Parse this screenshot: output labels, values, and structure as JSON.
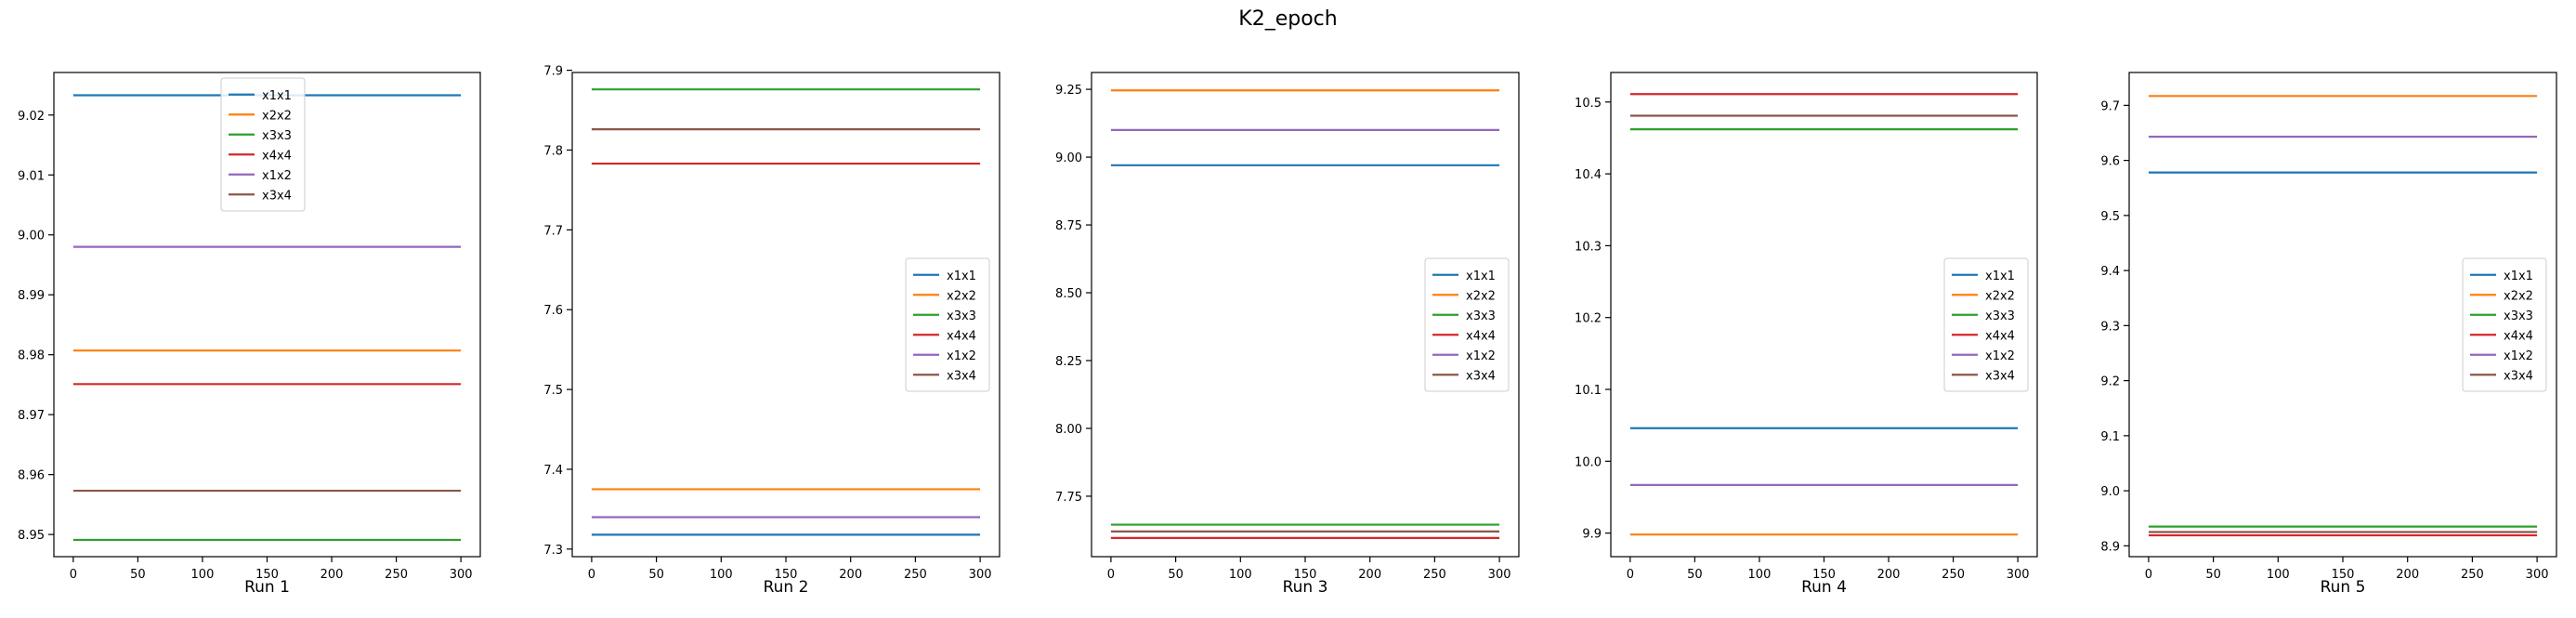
{
  "figure": {
    "suptitle": "K2_epoch"
  },
  "chart_data": [
    {
      "type": "line",
      "title": "",
      "xlabel": "Run 1",
      "ylabel": "",
      "x": [
        0,
        300
      ],
      "xlim": [
        -15,
        315
      ],
      "ylim": [
        8.9463,
        9.0271
      ],
      "xticks": [
        0,
        50,
        100,
        150,
        200,
        250,
        300
      ],
      "yticks": [
        8.95,
        8.96,
        8.97,
        8.98,
        8.99,
        9.0,
        9.01,
        9.02
      ],
      "ytick_labels": [
        "8.95",
        "8.96",
        "8.97",
        "8.98",
        "8.99",
        "9.00",
        "9.01",
        "9.02"
      ],
      "legend_loc": "upper center",
      "series": [
        {
          "name": "x1x1",
          "color": "#1f77b4",
          "values": [
            9.0233,
            9.0233
          ]
        },
        {
          "name": "x2x2",
          "color": "#ff7f0e",
          "values": [
            8.9807,
            8.9807
          ]
        },
        {
          "name": "x3x3",
          "color": "#2ca02c",
          "values": [
            8.9491,
            8.9491
          ]
        },
        {
          "name": "x4x4",
          "color": "#d62728",
          "values": [
            8.9751,
            8.9751
          ]
        },
        {
          "name": "x1x2",
          "color": "#9467bd",
          "values": [
            8.998,
            8.998
          ]
        },
        {
          "name": "x3x4",
          "color": "#8c564b",
          "values": [
            8.9573,
            8.9573
          ]
        }
      ]
    },
    {
      "type": "line",
      "title": "",
      "xlabel": "Run 2",
      "ylabel": "",
      "x": [
        0,
        300
      ],
      "xlim": [
        -15,
        315
      ],
      "ylim": [
        7.2905,
        7.8972
      ],
      "xticks": [
        0,
        50,
        100,
        150,
        200,
        250,
        300
      ],
      "yticks": [
        7.3,
        7.4,
        7.5,
        7.6,
        7.7,
        7.8,
        7.9
      ],
      "ytick_labels": [
        "7.3",
        "7.4",
        "7.5",
        "7.6",
        "7.7",
        "7.8",
        "7.9"
      ],
      "legend_loc": "center right",
      "series": [
        {
          "name": "x1x1",
          "color": "#1f77b4",
          "values": [
            7.318,
            7.318
          ]
        },
        {
          "name": "x2x2",
          "color": "#ff7f0e",
          "values": [
            7.375,
            7.375
          ]
        },
        {
          "name": "x3x3",
          "color": "#2ca02c",
          "values": [
            7.876,
            7.876
          ]
        },
        {
          "name": "x4x4",
          "color": "#d62728",
          "values": [
            7.783,
            7.783
          ]
        },
        {
          "name": "x1x2",
          "color": "#9467bd",
          "values": [
            7.34,
            7.34
          ]
        },
        {
          "name": "x3x4",
          "color": "#8c564b",
          "values": [
            7.826,
            7.826
          ]
        }
      ]
    },
    {
      "type": "line",
      "title": "",
      "xlabel": "Run 3",
      "ylabel": "",
      "x": [
        0,
        300
      ],
      "xlim": [
        -15,
        315
      ],
      "ylim": [
        7.5271,
        9.312
      ],
      "xticks": [
        0,
        50,
        100,
        150,
        200,
        250,
        300
      ],
      "yticks": [
        7.75,
        8.0,
        8.25,
        8.5,
        8.75,
        9.0,
        9.25
      ],
      "ytick_labels": [
        "7.75",
        "8.00",
        "8.25",
        "8.50",
        "8.75",
        "9.00",
        "9.25"
      ],
      "legend_loc": "center right",
      "series": [
        {
          "name": "x1x1",
          "color": "#1f77b4",
          "values": [
            8.97,
            8.97
          ]
        },
        {
          "name": "x2x2",
          "color": "#ff7f0e",
          "values": [
            9.246,
            9.246
          ]
        },
        {
          "name": "x3x3",
          "color": "#2ca02c",
          "values": [
            7.645,
            7.645
          ]
        },
        {
          "name": "x4x4",
          "color": "#d62728",
          "values": [
            7.596,
            7.596
          ]
        },
        {
          "name": "x1x2",
          "color": "#9467bd",
          "values": [
            9.1,
            9.1
          ]
        },
        {
          "name": "x3x4",
          "color": "#8c564b",
          "values": [
            7.62,
            7.62
          ]
        }
      ]
    },
    {
      "type": "line",
      "title": "",
      "xlabel": "Run 4",
      "ylabel": "",
      "x": [
        0,
        300
      ],
      "xlim": [
        -15,
        315
      ],
      "ylim": [
        9.8672,
        10.5411
      ],
      "xticks": [
        0,
        50,
        100,
        150,
        200,
        250,
        300
      ],
      "yticks": [
        9.9,
        10.0,
        10.1,
        10.2,
        10.3,
        10.4,
        10.5
      ],
      "ytick_labels": [
        "9.9",
        "10.0",
        "10.1",
        "10.2",
        "10.3",
        "10.4",
        "10.5"
      ],
      "legend_loc": "center right",
      "series": [
        {
          "name": "x1x1",
          "color": "#1f77b4",
          "values": [
            10.046,
            10.046
          ]
        },
        {
          "name": "x2x2",
          "color": "#ff7f0e",
          "values": [
            9.898,
            9.898
          ]
        },
        {
          "name": "x3x3",
          "color": "#2ca02c",
          "values": [
            10.462,
            10.462
          ]
        },
        {
          "name": "x4x4",
          "color": "#d62728",
          "values": [
            10.511,
            10.511
          ]
        },
        {
          "name": "x1x2",
          "color": "#9467bd",
          "values": [
            9.967,
            9.967
          ]
        },
        {
          "name": "x3x4",
          "color": "#8c564b",
          "values": [
            10.481,
            10.481
          ]
        }
      ]
    },
    {
      "type": "line",
      "title": "",
      "xlabel": "Run 5",
      "ylabel": "",
      "x": [
        0,
        300
      ],
      "xlim": [
        -15,
        315
      ],
      "ylim": [
        8.8803,
        9.7597
      ],
      "xticks": [
        0,
        50,
        100,
        150,
        200,
        250,
        300
      ],
      "yticks": [
        8.9,
        9.0,
        9.1,
        9.2,
        9.3,
        9.4,
        9.5,
        9.6,
        9.7
      ],
      "ytick_labels": [
        "8.9",
        "9.0",
        "9.1",
        "9.2",
        "9.3",
        "9.4",
        "9.5",
        "9.6",
        "9.7"
      ],
      "legend_loc": "center right",
      "series": [
        {
          "name": "x1x1",
          "color": "#1f77b4",
          "values": [
            9.578,
            9.578
          ]
        },
        {
          "name": "x2x2",
          "color": "#ff7f0e",
          "values": [
            9.717,
            9.717
          ]
        },
        {
          "name": "x3x3",
          "color": "#2ca02c",
          "values": [
            8.935,
            8.935
          ]
        },
        {
          "name": "x4x4",
          "color": "#d62728",
          "values": [
            8.919,
            8.919
          ]
        },
        {
          "name": "x1x2",
          "color": "#9467bd",
          "values": [
            9.643,
            9.643
          ]
        },
        {
          "name": "x3x4",
          "color": "#8c564b",
          "values": [
            8.925,
            8.925
          ]
        }
      ]
    }
  ]
}
